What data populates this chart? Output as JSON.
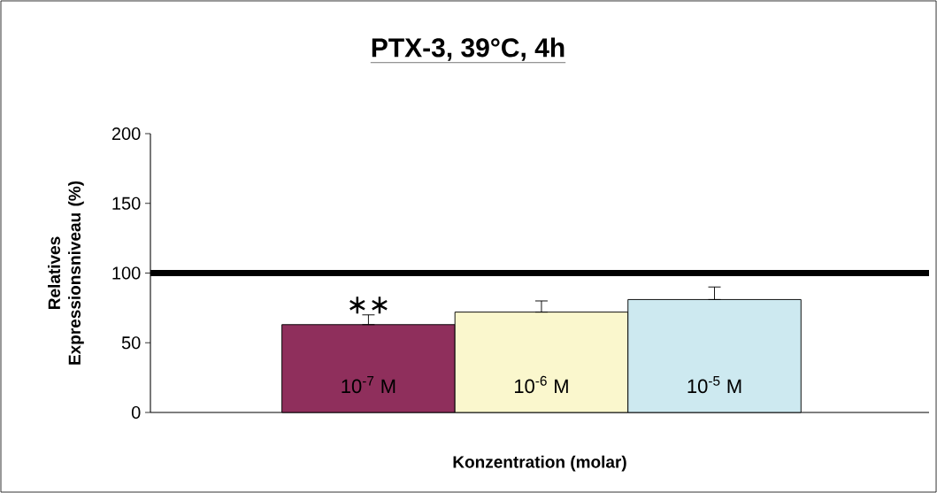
{
  "chart_data": {
    "type": "bar",
    "title": "PTX-3, 39°C, 4h",
    "xlabel": "Konzentration (molar)",
    "ylabel": "Relatives Expressionsniveau (%)",
    "categories": [
      "10$^{-7}$ M",
      "10$^{-6}$ M",
      "10$^{-5}$ M"
    ],
    "values": [
      63,
      72,
      81
    ],
    "colors": [
      "#8f2f5c",
      "#faf7cd",
      "#cde9f0"
    ],
    "errors": [
      [
        63,
        70
      ],
      [
        72,
        80
      ],
      [
        81,
        90
      ]
    ],
    "ylim": [
      0,
      200
    ],
    "yticks": [
      0,
      50,
      100,
      150,
      200
    ],
    "ref_lines": [
      {
        "axis": "y",
        "value": 100,
        "color": "#000000"
      }
    ],
    "annotations": [
      {
        "text": "∗∗",
        "x": "10$^{-7}$ M",
        "y": 70
      }
    ],
    "legend": false,
    "grid": false
  }
}
